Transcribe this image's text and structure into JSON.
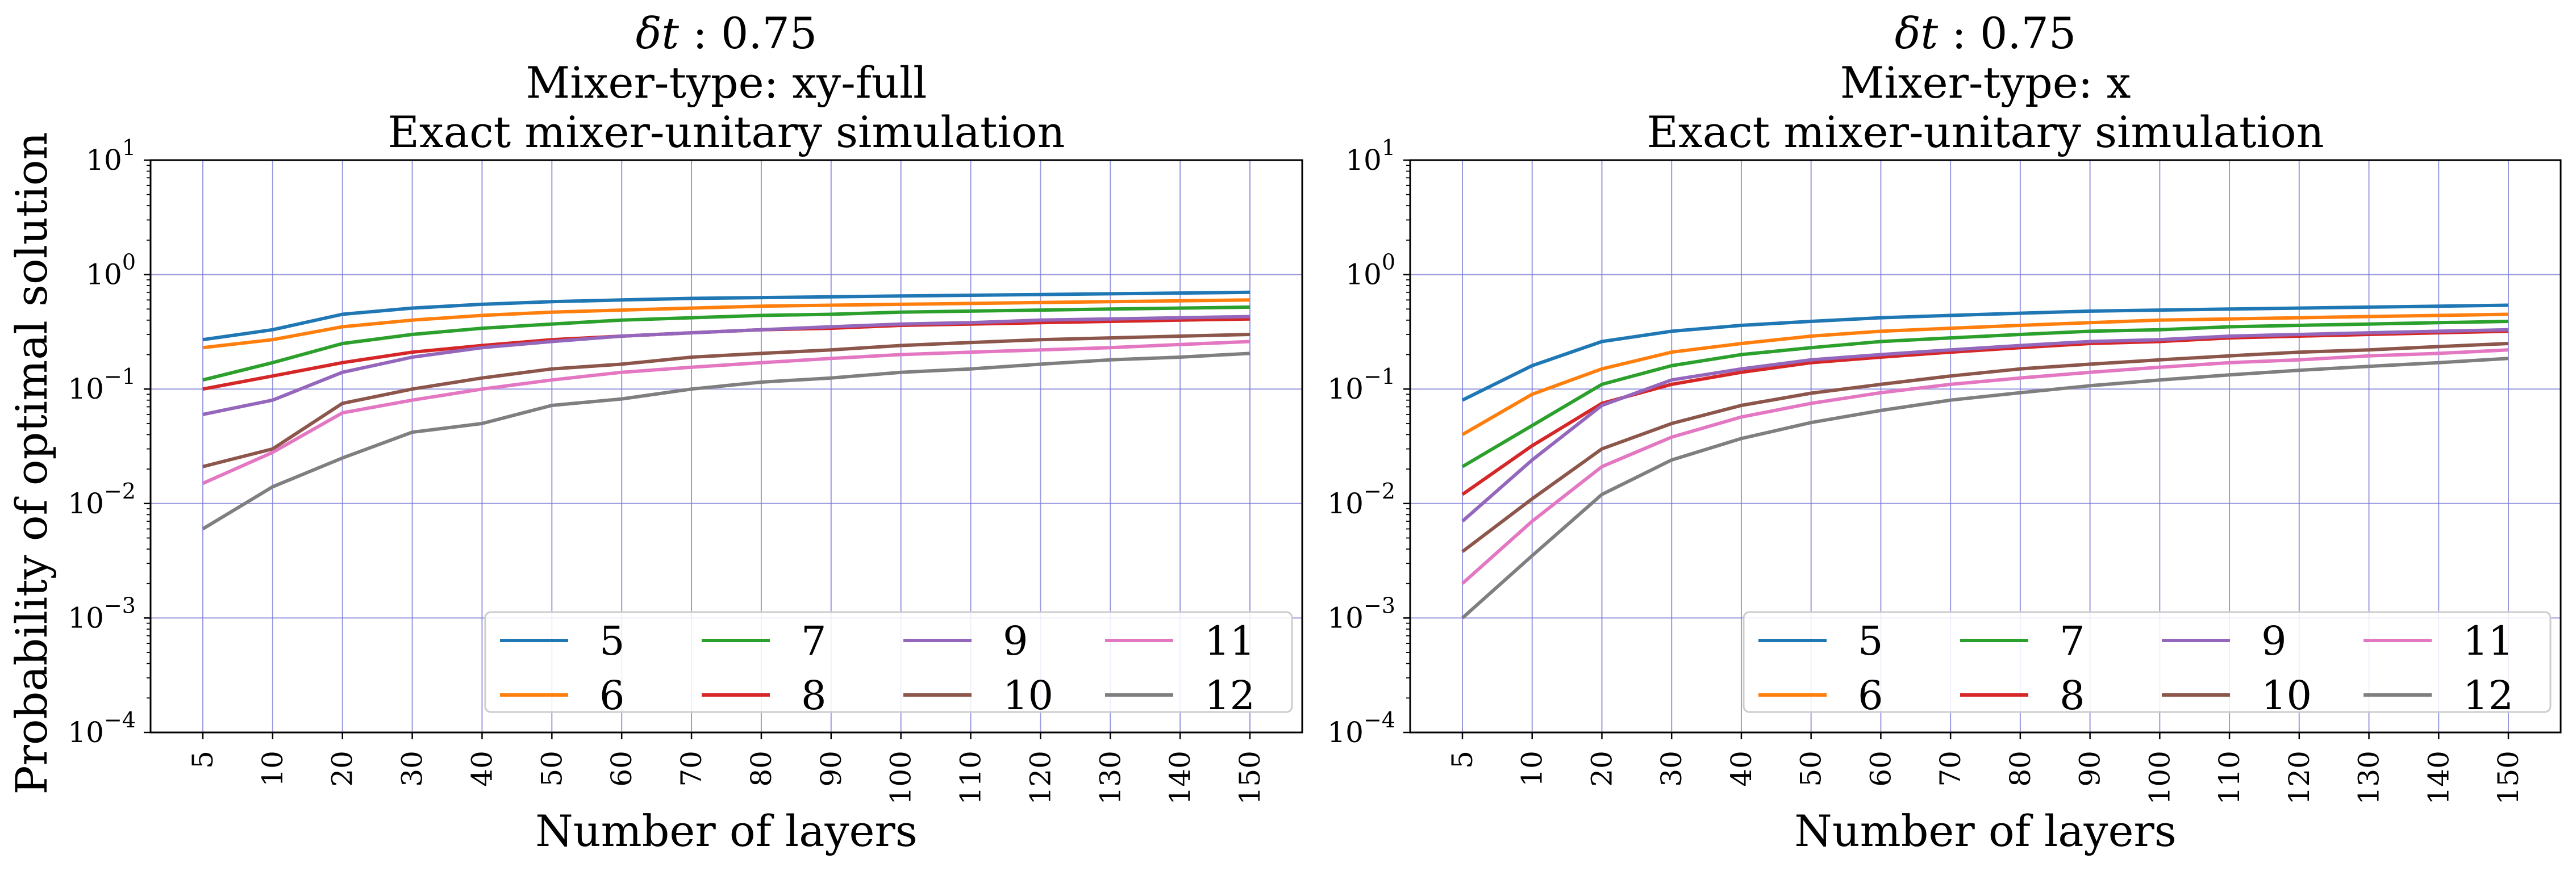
{
  "chart_data": [
    {
      "type": "line",
      "title_lines": [
        "δt : 0.75",
        "Mixer-type: xy-full",
        "Exact mixer-unitary simulation"
      ],
      "xlabel": "Number of layers",
      "ylabel": "Probability of optimal solution",
      "yscale": "log",
      "ylim": [
        0.0001,
        10
      ],
      "ytick_labels": [
        "10^-4",
        "10^-3",
        "10^-2",
        "10^-1",
        "10^0",
        "10^1"
      ],
      "x": [
        "5",
        "10",
        "20",
        "30",
        "40",
        "50",
        "60",
        "70",
        "80",
        "90",
        "100",
        "110",
        "120",
        "130",
        "140",
        "150"
      ],
      "grid": true,
      "legend": {
        "placement": "lower right",
        "columns": 4
      },
      "series": [
        {
          "name": "5",
          "color": "#1f77b4",
          "values": [
            0.27,
            0.33,
            0.45,
            0.51,
            0.55,
            0.58,
            0.6,
            0.62,
            0.63,
            0.64,
            0.65,
            0.66,
            0.67,
            0.68,
            0.69,
            0.7
          ]
        },
        {
          "name": "6",
          "color": "#ff7f0e",
          "values": [
            0.23,
            0.27,
            0.35,
            0.4,
            0.44,
            0.47,
            0.49,
            0.51,
            0.53,
            0.54,
            0.55,
            0.56,
            0.57,
            0.58,
            0.59,
            0.6
          ]
        },
        {
          "name": "7",
          "color": "#2ca02c",
          "values": [
            0.12,
            0.17,
            0.25,
            0.3,
            0.34,
            0.37,
            0.4,
            0.42,
            0.44,
            0.45,
            0.47,
            0.48,
            0.49,
            0.5,
            0.51,
            0.52
          ]
        },
        {
          "name": "8",
          "color": "#d62728",
          "values": [
            0.1,
            0.13,
            0.17,
            0.21,
            0.24,
            0.27,
            0.29,
            0.31,
            0.33,
            0.34,
            0.36,
            0.37,
            0.38,
            0.39,
            0.4,
            0.41
          ]
        },
        {
          "name": "9",
          "color": "#9467bd",
          "values": [
            0.06,
            0.08,
            0.14,
            0.19,
            0.23,
            0.26,
            0.29,
            0.31,
            0.33,
            0.35,
            0.37,
            0.38,
            0.4,
            0.41,
            0.42,
            0.43
          ]
        },
        {
          "name": "10",
          "color": "#8c564b",
          "values": [
            0.021,
            0.03,
            0.075,
            0.1,
            0.125,
            0.15,
            0.165,
            0.19,
            0.205,
            0.22,
            0.24,
            0.255,
            0.27,
            0.28,
            0.29,
            0.3
          ]
        },
        {
          "name": "11",
          "color": "#e377c2",
          "values": [
            0.015,
            0.028,
            0.062,
            0.08,
            0.1,
            0.12,
            0.14,
            0.155,
            0.17,
            0.185,
            0.2,
            0.21,
            0.22,
            0.23,
            0.245,
            0.26
          ]
        },
        {
          "name": "12",
          "color": "#7f7f7f",
          "values": [
            0.006,
            0.014,
            0.025,
            0.042,
            0.05,
            0.072,
            0.082,
            0.1,
            0.115,
            0.125,
            0.14,
            0.15,
            0.165,
            0.18,
            0.19,
            0.205
          ]
        }
      ]
    },
    {
      "type": "line",
      "title_lines": [
        "δt : 0.75",
        "Mixer-type: x",
        "Exact mixer-unitary simulation"
      ],
      "xlabel": "Number of layers",
      "ylabel": "",
      "yscale": "log",
      "ylim": [
        0.0001,
        10
      ],
      "ytick_labels": [
        "10^-4",
        "10^-3",
        "10^-2",
        "10^-1",
        "10^0",
        "10^1"
      ],
      "x": [
        "5",
        "10",
        "20",
        "30",
        "40",
        "50",
        "60",
        "70",
        "80",
        "90",
        "100",
        "110",
        "120",
        "130",
        "140",
        "150"
      ],
      "grid": true,
      "legend": {
        "placement": "lower right",
        "columns": 4
      },
      "series": [
        {
          "name": "5",
          "color": "#1f77b4",
          "values": [
            0.08,
            0.16,
            0.26,
            0.32,
            0.36,
            0.39,
            0.42,
            0.44,
            0.46,
            0.48,
            0.49,
            0.5,
            0.51,
            0.52,
            0.53,
            0.54
          ]
        },
        {
          "name": "6",
          "color": "#ff7f0e",
          "values": [
            0.04,
            0.09,
            0.15,
            0.21,
            0.25,
            0.29,
            0.32,
            0.34,
            0.36,
            0.38,
            0.4,
            0.41,
            0.42,
            0.43,
            0.44,
            0.45
          ]
        },
        {
          "name": "7",
          "color": "#2ca02c",
          "values": [
            0.021,
            0.048,
            0.11,
            0.16,
            0.2,
            0.23,
            0.26,
            0.28,
            0.3,
            0.32,
            0.33,
            0.35,
            0.36,
            0.37,
            0.38,
            0.39
          ]
        },
        {
          "name": "8",
          "color": "#d62728",
          "values": [
            0.012,
            0.032,
            0.075,
            0.11,
            0.14,
            0.17,
            0.19,
            0.21,
            0.23,
            0.25,
            0.26,
            0.28,
            0.29,
            0.3,
            0.31,
            0.32
          ]
        },
        {
          "name": "9",
          "color": "#9467bd",
          "values": [
            0.007,
            0.024,
            0.072,
            0.12,
            0.15,
            0.18,
            0.2,
            0.22,
            0.24,
            0.26,
            0.27,
            0.29,
            0.3,
            0.31,
            0.32,
            0.33
          ]
        },
        {
          "name": "10",
          "color": "#8c564b",
          "values": [
            0.0038,
            0.011,
            0.03,
            0.05,
            0.072,
            0.092,
            0.11,
            0.13,
            0.15,
            0.165,
            0.18,
            0.195,
            0.21,
            0.22,
            0.235,
            0.25
          ]
        },
        {
          "name": "11",
          "color": "#e377c2",
          "values": [
            0.002,
            0.007,
            0.021,
            0.038,
            0.057,
            0.075,
            0.093,
            0.11,
            0.125,
            0.14,
            0.155,
            0.17,
            0.18,
            0.195,
            0.205,
            0.22
          ]
        },
        {
          "name": "12",
          "color": "#7f7f7f",
          "values": [
            0.001,
            0.0035,
            0.012,
            0.024,
            0.037,
            0.051,
            0.065,
            0.08,
            0.093,
            0.107,
            0.12,
            0.133,
            0.146,
            0.158,
            0.17,
            0.185
          ]
        }
      ]
    }
  ]
}
